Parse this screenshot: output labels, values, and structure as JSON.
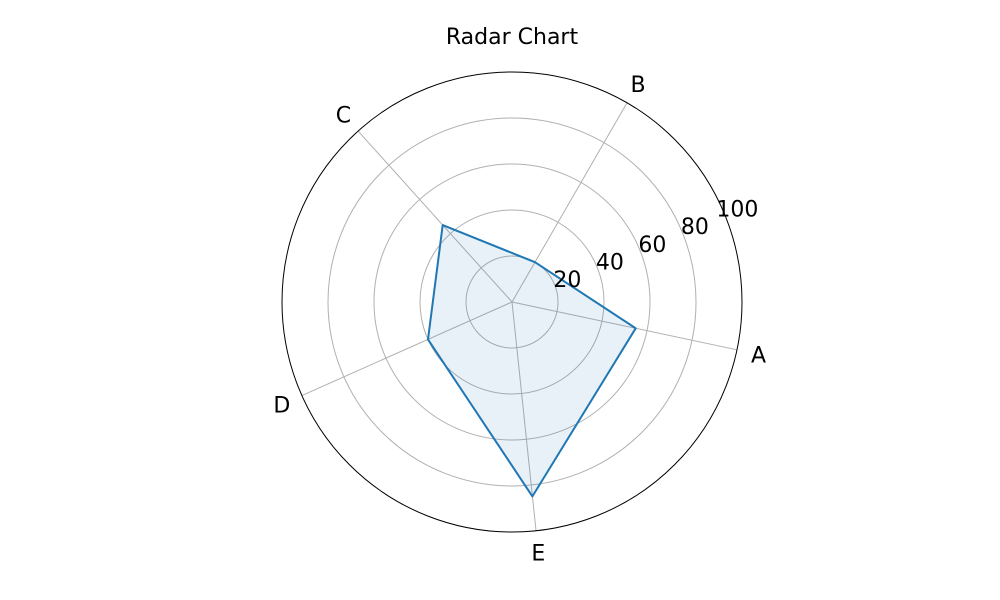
{
  "chart_data": {
    "type": "radar",
    "title": "Radar Chart",
    "categories": [
      "A",
      "B",
      "C",
      "D",
      "E"
    ],
    "series": [
      {
        "values": [
          55,
          20,
          45,
          40,
          85
        ],
        "color": "#1f77b4"
      }
    ],
    "radial_ticks": [
      20,
      40,
      60,
      80,
      100
    ],
    "rlim": [
      0,
      100
    ],
    "grid": true
  }
}
